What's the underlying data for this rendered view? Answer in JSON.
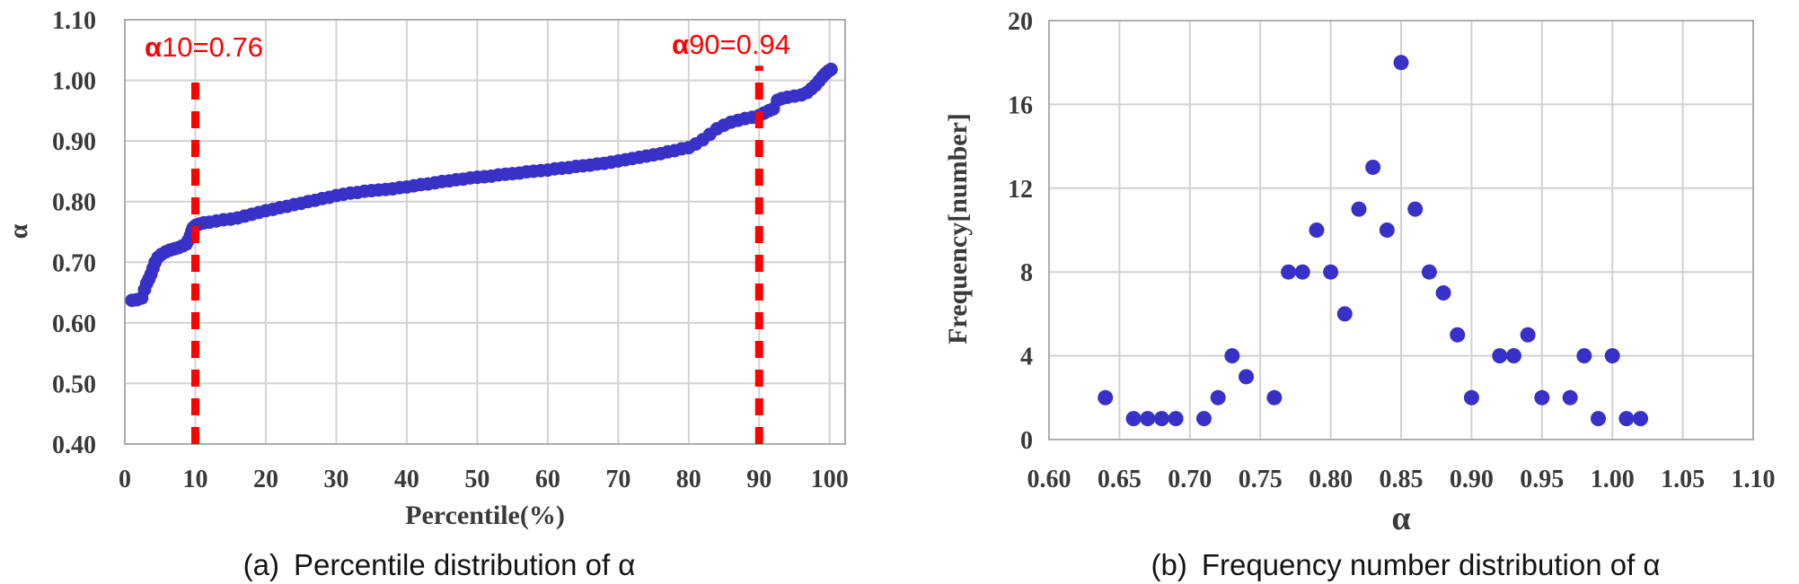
{
  "figure": {
    "background": "#FFFFFF"
  },
  "colors": {
    "dot_blue": "#3831C8",
    "ref_red": "#FE0202",
    "grid_gray": "#D2D2D2",
    "border_gray": "#ADADAD",
    "tick_text": "#3A3A3A",
    "caption_text": "#141414"
  },
  "chart_data": [
    {
      "id": "percentile-distribution",
      "type": "scatter",
      "caption_prefix": "(a)",
      "caption": "Percentile distribution of α",
      "xlabel": "Percentile(%)",
      "ylabel": "α",
      "grid": true,
      "legend": "none",
      "x_ticks": [
        "0",
        "10",
        "20",
        "30",
        "40",
        "50",
        "60",
        "70",
        "80",
        "90",
        "100"
      ],
      "y_ticks": [
        "1.10",
        "1.00",
        "0.90",
        "0.80",
        "0.70",
        "0.60",
        "0.50",
        "0.40"
      ],
      "xlim": [
        0,
        102.2
      ],
      "ylim": [
        0.4,
        1.1
      ],
      "point_color": "#3831C8",
      "ref_lines": [
        {
          "x": 10,
          "top": 1.014,
          "label_bold": "α",
          "label_rest": "10=0.76",
          "label_x": 11.2,
          "label_y": 1.041
        },
        {
          "x": 90,
          "top": 1.024,
          "label_bold": "α",
          "label_rest": "90=0.94",
          "label_x": 86.0,
          "label_y": 1.045
        }
      ],
      "series": [
        {
          "name": "alpha-percentile-curve",
          "points": [
            [
              1,
              0.637
            ],
            [
              1.7,
              0.638
            ],
            [
              2.4,
              0.641
            ],
            [
              2.8,
              0.655
            ],
            [
              3.1,
              0.665
            ],
            [
              3.4,
              0.672
            ],
            [
              3.7,
              0.68
            ],
            [
              4,
              0.69
            ],
            [
              4.3,
              0.7
            ],
            [
              4.7,
              0.708
            ],
            [
              5.2,
              0.713
            ],
            [
              5.8,
              0.717
            ],
            [
              6.4,
              0.72
            ],
            [
              7,
              0.722
            ],
            [
              7.6,
              0.724
            ],
            [
              8.2,
              0.727
            ],
            [
              8.7,
              0.73
            ],
            [
              9,
              0.736
            ],
            [
              9.3,
              0.744
            ],
            [
              9.5,
              0.751
            ],
            [
              9.7,
              0.757
            ],
            [
              10.1,
              0.761
            ],
            [
              10.6,
              0.763
            ],
            [
              11.2,
              0.765
            ],
            [
              12,
              0.766
            ],
            [
              13,
              0.768
            ],
            [
              14,
              0.77
            ],
            [
              15,
              0.771
            ],
            [
              16,
              0.773
            ],
            [
              17,
              0.776
            ],
            [
              18,
              0.779
            ],
            [
              19,
              0.782
            ],
            [
              20,
              0.785
            ],
            [
              21,
              0.787
            ],
            [
              22,
              0.79
            ],
            [
              23,
              0.792
            ],
            [
              24,
              0.795
            ],
            [
              25,
              0.797
            ],
            [
              26,
              0.8
            ],
            [
              27,
              0.802
            ],
            [
              28,
              0.805
            ],
            [
              29,
              0.807
            ],
            [
              30,
              0.81
            ],
            [
              31,
              0.812
            ],
            [
              32,
              0.814
            ],
            [
              33,
              0.815
            ],
            [
              34,
              0.817
            ],
            [
              35,
              0.818
            ],
            [
              36,
              0.819
            ],
            [
              37,
              0.82
            ],
            [
              38,
              0.821
            ],
            [
              39,
              0.823
            ],
            [
              40,
              0.824
            ],
            [
              41,
              0.826
            ],
            [
              42,
              0.828
            ],
            [
              43,
              0.829
            ],
            [
              44,
              0.831
            ],
            [
              45,
              0.833
            ],
            [
              46,
              0.834
            ],
            [
              47,
              0.836
            ],
            [
              48,
              0.837
            ],
            [
              49,
              0.839
            ],
            [
              50,
              0.84
            ],
            [
              51,
              0.841
            ],
            [
              52,
              0.842
            ],
            [
              53,
              0.844
            ],
            [
              54,
              0.845
            ],
            [
              55,
              0.846
            ],
            [
              56,
              0.847
            ],
            [
              57,
              0.849
            ],
            [
              58,
              0.85
            ],
            [
              59,
              0.851
            ],
            [
              60,
              0.852
            ],
            [
              61,
              0.854
            ],
            [
              62,
              0.855
            ],
            [
              63,
              0.856
            ],
            [
              64,
              0.858
            ],
            [
              65,
              0.859
            ],
            [
              66,
              0.86
            ],
            [
              67,
              0.862
            ],
            [
              68,
              0.863
            ],
            [
              69,
              0.865
            ],
            [
              70,
              0.867
            ],
            [
              71,
              0.869
            ],
            [
              72,
              0.871
            ],
            [
              73,
              0.873
            ],
            [
              74,
              0.875
            ],
            [
              75,
              0.877
            ],
            [
              76,
              0.879
            ],
            [
              77,
              0.882
            ],
            [
              78,
              0.884
            ],
            [
              79,
              0.887
            ],
            [
              80,
              0.889
            ],
            [
              81,
              0.895
            ],
            [
              82,
              0.902
            ],
            [
              83,
              0.911
            ],
            [
              84,
              0.92
            ],
            [
              85,
              0.926
            ],
            [
              86,
              0.931
            ],
            [
              87,
              0.934
            ],
            [
              88,
              0.937
            ],
            [
              89,
              0.939
            ],
            [
              90,
              0.942
            ],
            [
              90.7,
              0.946
            ],
            [
              91.4,
              0.95
            ],
            [
              92,
              0.953
            ],
            [
              92.6,
              0.967
            ],
            [
              93.2,
              0.97
            ],
            [
              94,
              0.972
            ],
            [
              95,
              0.974
            ],
            [
              96,
              0.976
            ],
            [
              96.8,
              0.98
            ],
            [
              97.4,
              0.986
            ],
            [
              98,
              0.992
            ],
            [
              98.5,
              0.999
            ],
            [
              99,
              1.006
            ],
            [
              99.4,
              1.011
            ],
            [
              99.8,
              1.015
            ],
            [
              100.2,
              1.018
            ]
          ]
        }
      ]
    },
    {
      "id": "frequency-distribution",
      "type": "scatter",
      "caption_prefix": "(b)",
      "caption": "Frequency number distribution of α",
      "xlabel": "α",
      "ylabel": "Frequency[number]",
      "grid": true,
      "legend": "none",
      "x_ticks": [
        "0.60",
        "0.65",
        "0.70",
        "0.75",
        "0.80",
        "0.85",
        "0.90",
        "0.95",
        "1.00",
        "1.05",
        "1.10"
      ],
      "y_ticks": [
        "20",
        "16",
        "12",
        "8",
        "4",
        "0"
      ],
      "xlim": [
        0.6,
        1.1
      ],
      "ylim": [
        0,
        20
      ],
      "point_color": "#3831C8",
      "ref_lines": [],
      "series": [
        {
          "name": "alpha-frequency",
          "points": [
            [
              0.64,
              2
            ],
            [
              0.66,
              1
            ],
            [
              0.67,
              1
            ],
            [
              0.68,
              1
            ],
            [
              0.69,
              1
            ],
            [
              0.71,
              1
            ],
            [
              0.72,
              2
            ],
            [
              0.73,
              4
            ],
            [
              0.74,
              3
            ],
            [
              0.76,
              2
            ],
            [
              0.77,
              8
            ],
            [
              0.78,
              8
            ],
            [
              0.79,
              10
            ],
            [
              0.8,
              8
            ],
            [
              0.81,
              6
            ],
            [
              0.82,
              11
            ],
            [
              0.83,
              13
            ],
            [
              0.84,
              10
            ],
            [
              0.85,
              18
            ],
            [
              0.86,
              11
            ],
            [
              0.87,
              8
            ],
            [
              0.88,
              7
            ],
            [
              0.89,
              5
            ],
            [
              0.9,
              2
            ],
            [
              0.92,
              4
            ],
            [
              0.93,
              4
            ],
            [
              0.94,
              5
            ],
            [
              0.95,
              2
            ],
            [
              0.97,
              2
            ],
            [
              0.98,
              4
            ],
            [
              0.99,
              1
            ],
            [
              1.0,
              4
            ],
            [
              1.01,
              1
            ],
            [
              1.02,
              1
            ]
          ]
        }
      ]
    }
  ]
}
